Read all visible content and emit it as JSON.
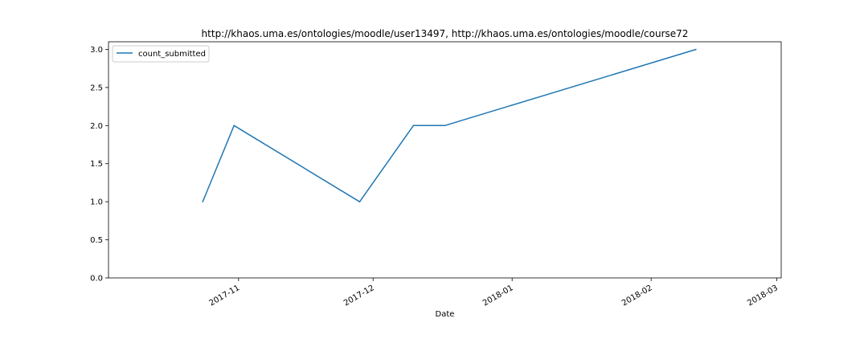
{
  "chart_data": {
    "type": "line",
    "title": "http://khaos.uma.es/ontologies/moodle/user13497, http://khaos.uma.es/ontologies/moodle/course72",
    "xlabel": "Date",
    "ylabel": "",
    "x_type": "date",
    "xlim": [
      "2017-10-03",
      "2018-03-02"
    ],
    "ylim": [
      0,
      3.1
    ],
    "x_ticks": [
      "2017-11-01",
      "2017-12-01",
      "2018-01-01",
      "2018-02-01",
      "2018-03-01"
    ],
    "x_tick_labels": [
      "2017-11",
      "2017-12",
      "2018-01",
      "2018-02",
      "2018-03"
    ],
    "y_ticks": [
      0,
      0.5,
      1,
      1.5,
      2,
      2.5,
      3
    ],
    "y_tick_labels": [
      "0.0",
      "0.5",
      "1.0",
      "1.5",
      "2.0",
      "2.5",
      "3.0"
    ],
    "grid": false,
    "legend_position": "upper left",
    "series": [
      {
        "name": "count_submitted",
        "color": "#1f77b4",
        "x": [
          "2017-10-24",
          "2017-10-31",
          "2017-11-28",
          "2017-12-10",
          "2017-12-17",
          "2018-02-11"
        ],
        "y": [
          1,
          2,
          1,
          2,
          2,
          3
        ]
      }
    ]
  }
}
